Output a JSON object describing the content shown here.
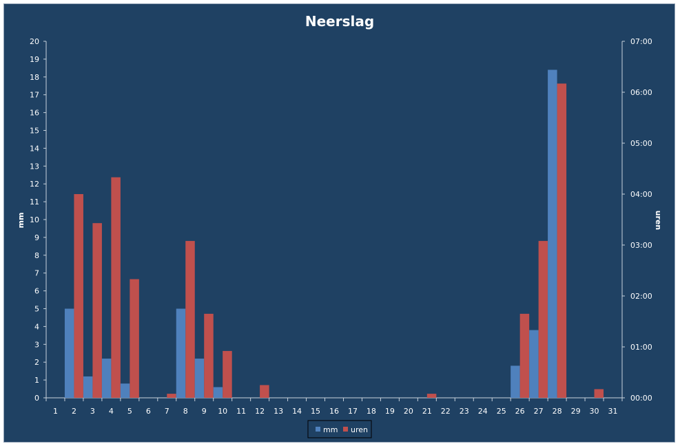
{
  "chart_data": {
    "type": "bar",
    "title": "Neerslag",
    "xlabel": "",
    "categories": [
      "1",
      "2",
      "3",
      "4",
      "5",
      "6",
      "7",
      "8",
      "9",
      "10",
      "11",
      "12",
      "13",
      "14",
      "15",
      "16",
      "17",
      "18",
      "19",
      "20",
      "21",
      "22",
      "23",
      "24",
      "25",
      "26",
      "27",
      "28",
      "29",
      "30",
      "31"
    ],
    "y_left": {
      "label": "mm",
      "lim": [
        0,
        20
      ],
      "ticks": [
        "0",
        "1",
        "2",
        "3",
        "4",
        "5",
        "6",
        "7",
        "8",
        "9",
        "10",
        "11",
        "12",
        "13",
        "14",
        "15",
        "16",
        "17",
        "18",
        "19",
        "20"
      ]
    },
    "y_right": {
      "label": "uren",
      "lim_hours": [
        0,
        7
      ],
      "ticks": [
        "00:00",
        "01:00",
        "02:00",
        "03:00",
        "04:00",
        "05:00",
        "06:00",
        "07:00"
      ]
    },
    "series": [
      {
        "name": "mm",
        "axis": "left",
        "color": "#4f81bd",
        "values": [
          0,
          5,
          1.2,
          2.2,
          0.8,
          0,
          0,
          5,
          2.2,
          0.6,
          0,
          0,
          0,
          0,
          0,
          0,
          0,
          0,
          0,
          0,
          0,
          0,
          0,
          0,
          0,
          1.8,
          3.8,
          18.4,
          0,
          0,
          0
        ]
      },
      {
        "name": "uren",
        "axis": "right",
        "color": "#c0504d",
        "values": [
          0,
          4.0,
          3.43,
          4.33,
          2.33,
          0,
          0.08,
          3.08,
          1.65,
          0.92,
          0,
          0.25,
          0,
          0,
          0,
          0,
          0,
          0,
          0,
          0,
          0.08,
          0,
          0,
          0,
          0,
          1.65,
          3.08,
          6.17,
          0,
          0.17,
          0
        ]
      }
    ],
    "legend": "bottom",
    "grid": false
  },
  "colors": {
    "background": "#1f4163",
    "text": "#ffffff"
  }
}
